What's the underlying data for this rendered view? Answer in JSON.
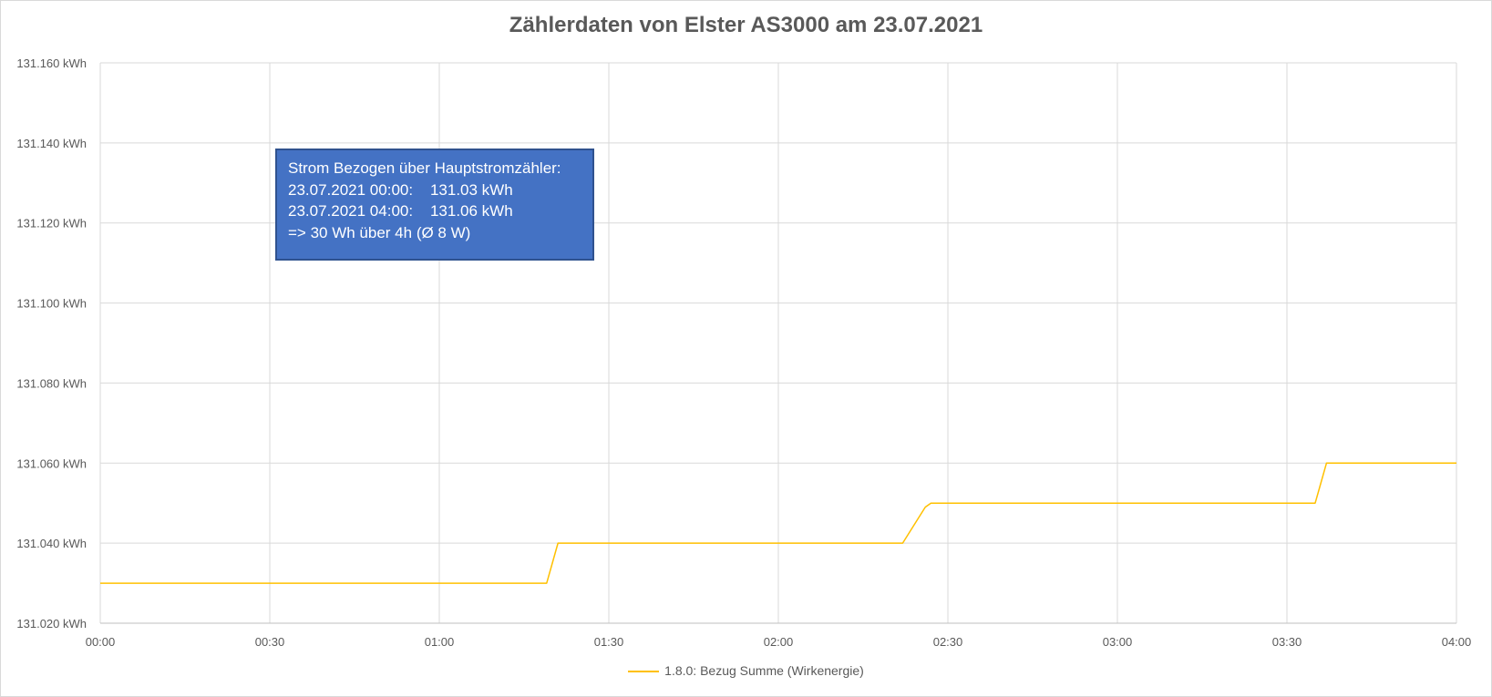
{
  "chart_data": {
    "type": "line",
    "title": "Zählerdaten von Elster AS3000 am 23.07.2021",
    "xlabel": "",
    "ylabel": "",
    "x_ticks": [
      "00:00",
      "00:30",
      "01:00",
      "01:30",
      "02:00",
      "02:30",
      "03:00",
      "03:30",
      "04:00"
    ],
    "x_range": [
      "00:00",
      "04:00"
    ],
    "y_ticks": [
      "131.020 kWh",
      "131.040 kWh",
      "131.060 kWh",
      "131.080 kWh",
      "131.100 kWh",
      "131.120 kWh",
      "131.140 kWh",
      "131.160 kWh"
    ],
    "ylim": [
      131.02,
      131.16
    ],
    "y_step": 0.02,
    "grid": true,
    "legend_position": "bottom",
    "series": [
      {
        "name": "1.8.0: Bezug Summe (Wirkenergie)",
        "color": "#ffc000",
        "x": [
          "00:00",
          "01:19",
          "01:20",
          "01:21",
          "02:22",
          "02:26",
          "02:27",
          "03:35",
          "03:36",
          "03:37",
          "04:00"
        ],
        "values": [
          131.03,
          131.03,
          131.035,
          131.04,
          131.04,
          131.049,
          131.05,
          131.05,
          131.055,
          131.06,
          131.06
        ]
      }
    ],
    "annotation": {
      "lines": [
        "Strom Bezogen über Hauptstromzähler:",
        "23.07.2021 00:00:    131.03 kWh",
        "23.07.2021 04:00:    131.06 kWh",
        "=> 30 Wh über 4h (Ø 8 W)"
      ]
    }
  }
}
